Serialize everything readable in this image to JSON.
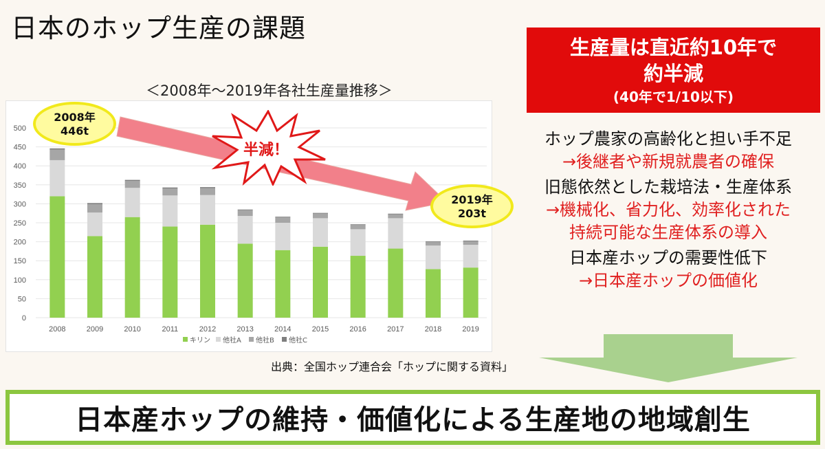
{
  "title": "日本のホップ生産の課題",
  "chart_subtitle": "＜2008年～2019年各社生産量推移＞",
  "source": "出典：全国ホップ連合会「ホップに関する資料」",
  "headline": {
    "line1": "生産量は直近約10年で",
    "line2": "約半減",
    "line3": "(40年で1/10以下)"
  },
  "issues": [
    {
      "problem": "ホップ農家の高齢化と担い手不足",
      "solution": [
        "→後継者や新規就農者の確保"
      ]
    },
    {
      "problem": "旧態依然とした栽培法・生産体系",
      "solution": [
        "→機械化、省力化、効率化された",
        "持続可能な生産体系の導入"
      ]
    },
    {
      "problem": "日本産ホップの需要性低下",
      "solution": [
        "→日本産ホップの価値化"
      ]
    }
  ],
  "callouts": {
    "start_year": "2008年",
    "start_value": "446t",
    "end_year": "2019年",
    "end_value": "203t",
    "burst": "半減！"
  },
  "conclusion": "日本産ホップの維持・価値化による生産地の地域創生",
  "colors": {
    "kirin": "#92d050",
    "companyA": "#d9d9d9",
    "companyB": "#a6a6a6",
    "companyC": "#7f7f7f",
    "headline_bg": "#e10b0b",
    "solution_text": "#e02020",
    "arrow": "#f2808a",
    "conclusion_border": "#8cc63f"
  },
  "chart_data": {
    "type": "bar",
    "stacked": true,
    "categories": [
      "2008",
      "2009",
      "2010",
      "2011",
      "2012",
      "2013",
      "2014",
      "2015",
      "2016",
      "2017",
      "2018",
      "2019"
    ],
    "series": [
      {
        "name": "キリン",
        "color": "#92d050",
        "values": [
          320,
          215,
          265,
          240,
          245,
          195,
          178,
          187,
          163,
          182,
          128,
          132
        ]
      },
      {
        "name": "他社A",
        "color": "#d9d9d9",
        "values": [
          95,
          62,
          77,
          82,
          78,
          73,
          72,
          75,
          70,
          80,
          62,
          60
        ]
      },
      {
        "name": "他社B",
        "color": "#a6a6a6",
        "values": [
          28,
          22,
          18,
          18,
          18,
          15,
          14,
          12,
          11,
          10,
          9,
          9
        ]
      },
      {
        "name": "他社C",
        "color": "#7f7f7f",
        "values": [
          3,
          3,
          3,
          3,
          3,
          2,
          2,
          2,
          2,
          2,
          2,
          2
        ]
      }
    ],
    "ylim": [
      0,
      500
    ],
    "yticks": [
      0,
      50,
      100,
      150,
      200,
      250,
      300,
      350,
      400,
      450,
      500
    ],
    "grid": true,
    "legend": "bottom",
    "xlabel": "",
    "ylabel": ""
  }
}
